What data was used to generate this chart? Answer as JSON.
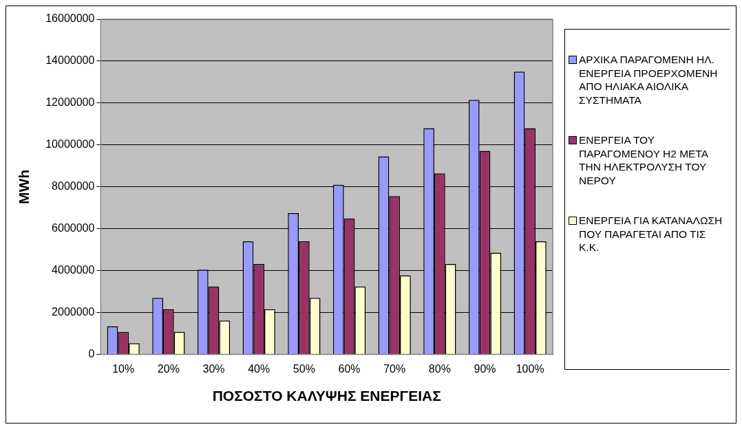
{
  "chart_data": {
    "type": "bar",
    "xlabel": "ΠΟΣΟΣΤΟ ΚΑΛΥΨΗΣ ΕΝΕΡΓΕΙΑΣ",
    "ylabel": "MWh",
    "categories": [
      "10%",
      "20%",
      "30%",
      "40%",
      "50%",
      "60%",
      "70%",
      "80%",
      "90%",
      "100%"
    ],
    "series": [
      {
        "name": "ΑΡΧΙΚΑ ΠΑΡΑΓΟΜΕΝΗ ΗΛ. ΕΝΕΡΓΕΙΑ ΠΡΟΕΡΧΟΜΕΝΗ ΑΠΟ ΗΛΙΑΚΑ ΑΙΟΛΙΚΑ ΣΥΣΤΗΜΑΤΑ",
        "color": "#9999ff",
        "values": [
          1350000,
          2700000,
          4050000,
          5400000,
          6750000,
          8100000,
          9450000,
          10800000,
          12150000,
          13500000
        ]
      },
      {
        "name": "ΕΝΕΡΓΕΙΑ ΤΟΥ ΠΑΡΑΓΟΜΕΝΟΥ Η2 ΜΕΤΑ ΤΗΝ ΗΛΕΚΤΡΟΛΥΣΗ ΤΟΥ ΝΕΡΟΥ",
        "color": "#993366",
        "values": [
          1080000,
          2160000,
          3240000,
          4320000,
          5400000,
          6480000,
          7560000,
          8640000,
          9720000,
          10800000
        ]
      },
      {
        "name": "ΕΝΕΡΓΕΙΑ ΓΙΑ ΚΑΤΑΝΑΛΩΣΗ ΠΟΥ ΠΑΡΑΓΕΤΑΙ ΑΠΟ ΤΙΣ Κ.Κ.",
        "color": "#ffffcc",
        "values": [
          540000,
          1080000,
          1620000,
          2160000,
          2700000,
          3240000,
          3780000,
          4320000,
          4860000,
          5400000
        ]
      }
    ],
    "ylim": [
      0,
      16000000
    ],
    "yticks": [
      0,
      2000000,
      4000000,
      6000000,
      8000000,
      10000000,
      12000000,
      14000000,
      16000000
    ],
    "grid": "y",
    "legend": "right"
  }
}
